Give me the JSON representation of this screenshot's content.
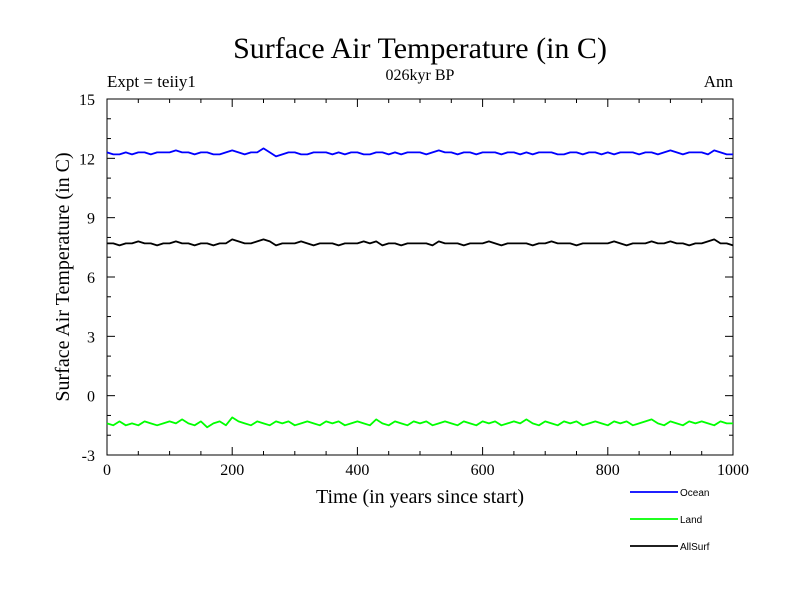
{
  "header": {
    "title": "Surface Air Temperature (in C)",
    "subtitle": "026kyr BP",
    "left_label": "Expt = teiiy1",
    "right_label": "Ann"
  },
  "chart_data": {
    "type": "line",
    "title": "Surface Air Temperature (in C)",
    "subtitle": "026kyr BP",
    "xlabel": "Time (in years since start)",
    "ylabel": "Surface Air Temperature (in C)",
    "xlim": [
      0,
      1000
    ],
    "ylim": [
      -3,
      15
    ],
    "xticks": [
      0,
      200,
      400,
      600,
      800,
      1000
    ],
    "yticks": [
      -3,
      0,
      3,
      6,
      9,
      12,
      15
    ],
    "grid": false,
    "legend_position": "bottom-right, outside plot",
    "series": [
      {
        "name": "Ocean",
        "color": "#0000ff",
        "x_start": 0,
        "x_step": 10,
        "values": [
          12.3,
          12.2,
          12.2,
          12.3,
          12.2,
          12.3,
          12.3,
          12.2,
          12.3,
          12.3,
          12.3,
          12.4,
          12.3,
          12.3,
          12.2,
          12.3,
          12.3,
          12.2,
          12.2,
          12.3,
          12.4,
          12.3,
          12.2,
          12.3,
          12.3,
          12.5,
          12.3,
          12.1,
          12.2,
          12.3,
          12.3,
          12.2,
          12.2,
          12.3,
          12.3,
          12.3,
          12.2,
          12.3,
          12.2,
          12.3,
          12.3,
          12.2,
          12.2,
          12.3,
          12.3,
          12.2,
          12.3,
          12.2,
          12.3,
          12.3,
          12.3,
          12.2,
          12.3,
          12.4,
          12.3,
          12.3,
          12.2,
          12.3,
          12.3,
          12.2,
          12.3,
          12.3,
          12.3,
          12.2,
          12.3,
          12.3,
          12.2,
          12.3,
          12.2,
          12.3,
          12.3,
          12.3,
          12.2,
          12.2,
          12.3,
          12.3,
          12.2,
          12.3,
          12.3,
          12.2,
          12.3,
          12.2,
          12.3,
          12.3,
          12.3,
          12.2,
          12.3,
          12.3,
          12.2,
          12.3,
          12.4,
          12.3,
          12.2,
          12.3,
          12.3,
          12.3,
          12.2,
          12.4,
          12.3,
          12.2,
          12.2
        ]
      },
      {
        "name": "Land",
        "color": "#00ff00",
        "x_start": 0,
        "x_step": 10,
        "values": [
          -1.4,
          -1.5,
          -1.3,
          -1.5,
          -1.4,
          -1.5,
          -1.3,
          -1.4,
          -1.5,
          -1.4,
          -1.3,
          -1.4,
          -1.2,
          -1.4,
          -1.5,
          -1.3,
          -1.6,
          -1.4,
          -1.3,
          -1.5,
          -1.1,
          -1.3,
          -1.4,
          -1.5,
          -1.3,
          -1.4,
          -1.5,
          -1.3,
          -1.4,
          -1.3,
          -1.5,
          -1.4,
          -1.3,
          -1.4,
          -1.5,
          -1.3,
          -1.4,
          -1.3,
          -1.5,
          -1.4,
          -1.3,
          -1.4,
          -1.5,
          -1.2,
          -1.4,
          -1.5,
          -1.3,
          -1.4,
          -1.5,
          -1.3,
          -1.4,
          -1.3,
          -1.5,
          -1.4,
          -1.3,
          -1.4,
          -1.5,
          -1.3,
          -1.4,
          -1.5,
          -1.3,
          -1.4,
          -1.3,
          -1.5,
          -1.4,
          -1.3,
          -1.4,
          -1.2,
          -1.4,
          -1.5,
          -1.3,
          -1.4,
          -1.5,
          -1.3,
          -1.4,
          -1.3,
          -1.5,
          -1.4,
          -1.3,
          -1.4,
          -1.5,
          -1.3,
          -1.4,
          -1.3,
          -1.5,
          -1.4,
          -1.3,
          -1.2,
          -1.4,
          -1.5,
          -1.3,
          -1.4,
          -1.5,
          -1.3,
          -1.4,
          -1.3,
          -1.4,
          -1.5,
          -1.3,
          -1.4,
          -1.4
        ]
      },
      {
        "name": "AllSurf",
        "color": "#000000",
        "x_start": 0,
        "x_step": 10,
        "values": [
          7.7,
          7.7,
          7.6,
          7.7,
          7.7,
          7.8,
          7.7,
          7.7,
          7.6,
          7.7,
          7.7,
          7.8,
          7.7,
          7.7,
          7.6,
          7.7,
          7.7,
          7.6,
          7.7,
          7.7,
          7.9,
          7.8,
          7.7,
          7.7,
          7.8,
          7.9,
          7.8,
          7.6,
          7.7,
          7.7,
          7.7,
          7.8,
          7.7,
          7.6,
          7.7,
          7.7,
          7.7,
          7.6,
          7.7,
          7.7,
          7.7,
          7.8,
          7.7,
          7.8,
          7.6,
          7.7,
          7.7,
          7.6,
          7.7,
          7.7,
          7.7,
          7.7,
          7.6,
          7.8,
          7.7,
          7.7,
          7.7,
          7.6,
          7.7,
          7.7,
          7.7,
          7.8,
          7.7,
          7.6,
          7.7,
          7.7,
          7.7,
          7.7,
          7.6,
          7.7,
          7.7,
          7.8,
          7.7,
          7.7,
          7.7,
          7.6,
          7.7,
          7.7,
          7.7,
          7.7,
          7.7,
          7.8,
          7.7,
          7.6,
          7.7,
          7.7,
          7.7,
          7.8,
          7.7,
          7.7,
          7.8,
          7.7,
          7.7,
          7.6,
          7.7,
          7.7,
          7.8,
          7.9,
          7.7,
          7.7,
          7.6
        ]
      }
    ]
  }
}
